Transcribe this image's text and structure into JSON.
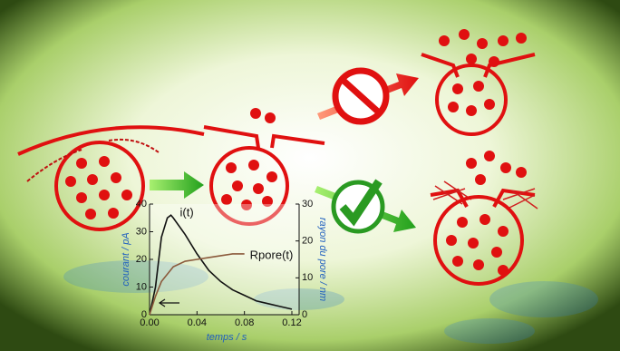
{
  "chart_data": {
    "type": "line",
    "xlabel": "temps / s",
    "ylabel": "courant / pA",
    "y2label": "rayon du pore / nm",
    "xlim": [
      0,
      0.12
    ],
    "xticks": [
      {
        "value": 0,
        "label": "0.00"
      },
      {
        "value": 0.04,
        "label": "0.04"
      },
      {
        "value": 0.08,
        "label": "0.08"
      },
      {
        "value": 0.12,
        "label": "0.12"
      }
    ],
    "ylim": [
      0,
      40
    ],
    "yticks": [
      0,
      10,
      20,
      30,
      40
    ],
    "y2lim": [
      0,
      30
    ],
    "y2ticks": [
      0,
      10,
      20,
      30
    ],
    "series": [
      {
        "name": "i(t)",
        "color": "#111111",
        "x": [
          0,
          0.005,
          0.01,
          0.015,
          0.018,
          0.02,
          0.03,
          0.04,
          0.05,
          0.06,
          0.07,
          0.08,
          0.09,
          0.1,
          0.11,
          0.12
        ],
        "values": [
          0,
          10,
          28,
          35,
          36,
          35,
          29,
          22,
          16,
          12,
          9,
          7,
          5,
          4,
          3,
          2
        ]
      },
      {
        "name": "Rpore(t)",
        "color": "#8b5a3c",
        "axis": "y2",
        "x": [
          0,
          0.005,
          0.01,
          0.02,
          0.03,
          0.04,
          0.05,
          0.06,
          0.07,
          0.08
        ],
        "values": [
          0,
          5,
          9,
          13,
          14.5,
          15,
          15.5,
          16,
          16.5,
          16.5
        ]
      }
    ]
  }
}
